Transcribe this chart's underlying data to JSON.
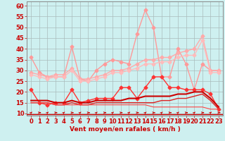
{
  "x": [
    0,
    1,
    2,
    3,
    4,
    5,
    6,
    7,
    8,
    9,
    10,
    11,
    12,
    13,
    14,
    15,
    16,
    17,
    18,
    19,
    20,
    21,
    22,
    23
  ],
  "series": [
    {
      "name": "rafales_max",
      "color": "#ff9999",
      "linewidth": 1.0,
      "marker": "D",
      "markersize": 2.5,
      "values": [
        36,
        29,
        27,
        27,
        27,
        41,
        26,
        25,
        30,
        33,
        35,
        34,
        33,
        47,
        58,
        50,
        27,
        27,
        40,
        33,
        21,
        33,
        30,
        30
      ]
    },
    {
      "name": "rafales_mean_upper",
      "color": "#ffaaaa",
      "linewidth": 1.0,
      "marker": "D",
      "markersize": 2.5,
      "values": [
        29,
        28,
        27,
        28,
        28,
        31,
        26,
        26,
        27,
        28,
        30,
        30,
        31,
        33,
        35,
        35,
        36,
        36,
        38,
        39,
        40,
        46,
        30,
        30
      ]
    },
    {
      "name": "rafales_mean_lower",
      "color": "#ffbbbb",
      "linewidth": 1.0,
      "marker": "D",
      "markersize": 2.5,
      "values": [
        28,
        27,
        26,
        27,
        27,
        30,
        25,
        25,
        26,
        27,
        29,
        29,
        30,
        31,
        33,
        33,
        34,
        34,
        36,
        37,
        37,
        44,
        29,
        29
      ]
    },
    {
      "name": "vent_max",
      "color": "#ff3333",
      "linewidth": 1.0,
      "marker": "D",
      "markersize": 2.5,
      "values": [
        21,
        15,
        14,
        15,
        15,
        21,
        15,
        16,
        17,
        17,
        17,
        22,
        22,
        17,
        22,
        27,
        27,
        22,
        22,
        21,
        21,
        21,
        19,
        12
      ]
    },
    {
      "name": "vent_mean",
      "color": "#cc0000",
      "linewidth": 1.5,
      "marker": null,
      "markersize": 0,
      "values": [
        16,
        16,
        16,
        15,
        15,
        16,
        15,
        15,
        16,
        16,
        16,
        16,
        17,
        17,
        18,
        18,
        18,
        18,
        19,
        19,
        20,
        20,
        17,
        13
      ]
    },
    {
      "name": "vent_lower",
      "color": "#dd2222",
      "linewidth": 1.0,
      "marker": null,
      "markersize": 0,
      "values": [
        15,
        15,
        15,
        14,
        14,
        15,
        14,
        14,
        15,
        15,
        15,
        15,
        15,
        15,
        15,
        15,
        16,
        16,
        17,
        17,
        18,
        19,
        16,
        12
      ]
    },
    {
      "name": "vent_base",
      "color": "#ff4444",
      "linewidth": 0.8,
      "marker": null,
      "markersize": 0,
      "values": [
        15,
        15,
        15,
        14,
        14,
        14,
        14,
        14,
        14,
        14,
        14,
        14,
        14,
        14,
        14,
        13,
        13,
        13,
        13,
        13,
        13,
        13,
        12,
        12
      ]
    }
  ],
  "xlabel": "Vent moyen/en rafales ( km/h )",
  "xlabel_color": "#cc0000",
  "xlabel_fontsize": 6.5,
  "yticks": [
    10,
    15,
    20,
    25,
    30,
    35,
    40,
    45,
    50,
    55,
    60
  ],
  "xlim": [
    -0.5,
    23.5
  ],
  "ylim": [
    9,
    62
  ],
  "bg_color": "#cef0f0",
  "grid_color": "#aabbbb",
  "tick_fontsize": 6,
  "tick_color": "#cc0000",
  "arrow_color": "#cc0000",
  "spine_color": "#888888"
}
